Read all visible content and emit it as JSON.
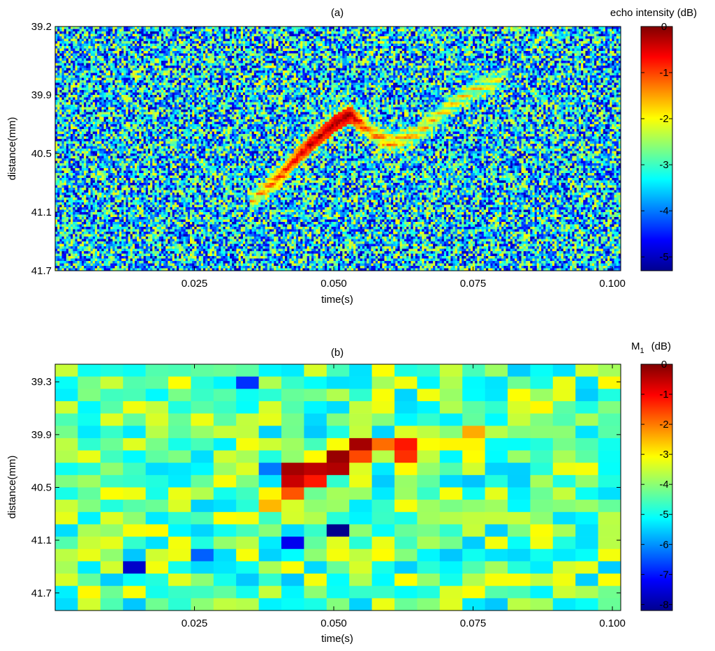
{
  "chart_data": [
    {
      "id": "a",
      "type": "heatmap",
      "title": "(a)",
      "xlabel": "time(s)",
      "ylabel": "distance(mm)",
      "xlim": [
        0.0,
        0.1015
      ],
      "ylim": [
        39.2,
        41.7
      ],
      "x_ticks": [
        0.025,
        0.05,
        0.075,
        0.1
      ],
      "x_tick_labels": [
        "0.025",
        "0.050",
        "0.075",
        "0.100"
      ],
      "y_ticks": [
        39.2,
        39.9,
        40.5,
        41.1,
        41.7
      ],
      "y_tick_labels": [
        "39.2",
        "39.9",
        "40.5",
        "41.1",
        "41.7"
      ],
      "colorbar": {
        "label": "echo intensity (dB)",
        "range": [
          -5.3,
          0
        ],
        "ticks": [
          0,
          -1,
          -2,
          -3,
          -4,
          -5
        ],
        "tick_labels": [
          "0",
          "-1",
          "-2",
          "-3",
          "-4",
          "-5"
        ]
      },
      "grid": {
        "cols": 256,
        "rows": 100,
        "noise_mean_db": -3.5
      },
      "echo_trace": {
        "description": "high-intensity echo band",
        "t": [
          0.035,
          0.04,
          0.045,
          0.05,
          0.053,
          0.056,
          0.06,
          0.065,
          0.07,
          0.075,
          0.08
        ],
        "distance_mm": [
          41.0,
          40.75,
          40.45,
          40.2,
          40.1,
          40.25,
          40.4,
          40.3,
          40.05,
          39.85,
          39.75
        ],
        "peak_db": [
          -2.8,
          -1.5,
          -0.6,
          -0.2,
          -0.3,
          -1.8,
          -2.2,
          -2.6,
          -2.8,
          -3.0,
          -3.1
        ]
      }
    },
    {
      "id": "b",
      "type": "heatmap",
      "title": "(b)",
      "xlabel": "time(s)",
      "ylabel": "distance(mm)",
      "xlim": [
        0.0,
        0.1015
      ],
      "ylim": [
        39.1,
        41.9
      ],
      "x_ticks": [
        0.025,
        0.05,
        0.075,
        0.1
      ],
      "x_tick_labels": [
        "0.025",
        "0.050",
        "0.075",
        "0.100"
      ],
      "y_ticks": [
        39.3,
        39.9,
        40.5,
        41.1,
        41.7
      ],
      "y_tick_labels": [
        "39.3",
        "39.9",
        "40.5",
        "41.1",
        "41.7"
      ],
      "colorbar": {
        "label": "M",
        "label_sub": "1",
        "label_unit": "(dB)",
        "range": [
          -8.2,
          0
        ],
        "ticks": [
          0,
          -1,
          -2,
          -3,
          -4,
          -5,
          -6,
          -7,
          -8
        ],
        "tick_labels": [
          "0",
          "-1",
          "-2",
          "-3",
          "-4",
          "-5",
          "-6",
          "-7",
          "-8"
        ]
      },
      "grid": {
        "cols": 25,
        "rows": 20,
        "noise_mean_db": -4.3
      },
      "hot_cells": [
        {
          "col": 10,
          "row": 8,
          "value": -0.3
        },
        {
          "col": 11,
          "row": 8,
          "value": -0.5
        },
        {
          "col": 10,
          "row": 9,
          "value": -0.6
        },
        {
          "col": 11,
          "row": 9,
          "value": -1.2
        },
        {
          "col": 12,
          "row": 7,
          "value": -0.2
        },
        {
          "col": 12,
          "row": 8,
          "value": -0.4
        },
        {
          "col": 13,
          "row": 6,
          "value": -0.3
        },
        {
          "col": 13,
          "row": 7,
          "value": -1.6
        },
        {
          "col": 14,
          "row": 6,
          "value": -1.9
        },
        {
          "col": 15,
          "row": 6,
          "value": -1.2
        },
        {
          "col": 15,
          "row": 7,
          "value": -1.4
        },
        {
          "col": 16,
          "row": 6,
          "value": -3.1
        },
        {
          "col": 17,
          "row": 6,
          "value": -3.0
        },
        {
          "col": 18,
          "row": 5,
          "value": -2.4
        },
        {
          "col": 18,
          "row": 6,
          "value": -3.0
        },
        {
          "col": 10,
          "row": 10,
          "value": -1.7
        },
        {
          "col": 9,
          "row": 10,
          "value": -3.0
        },
        {
          "col": 9,
          "row": 11,
          "value": -2.5
        },
        {
          "col": 10,
          "row": 11,
          "value": -3.4
        },
        {
          "col": 12,
          "row": 13,
          "value": -8.1
        },
        {
          "col": 9,
          "row": 8,
          "value": -6.2
        },
        {
          "col": 10,
          "row": 14,
          "value": -7.3
        },
        {
          "col": 3,
          "row": 16,
          "value": -7.6
        },
        {
          "col": 8,
          "row": 1,
          "value": -6.8
        },
        {
          "col": 6,
          "row": 15,
          "value": -6.4
        }
      ]
    }
  ]
}
